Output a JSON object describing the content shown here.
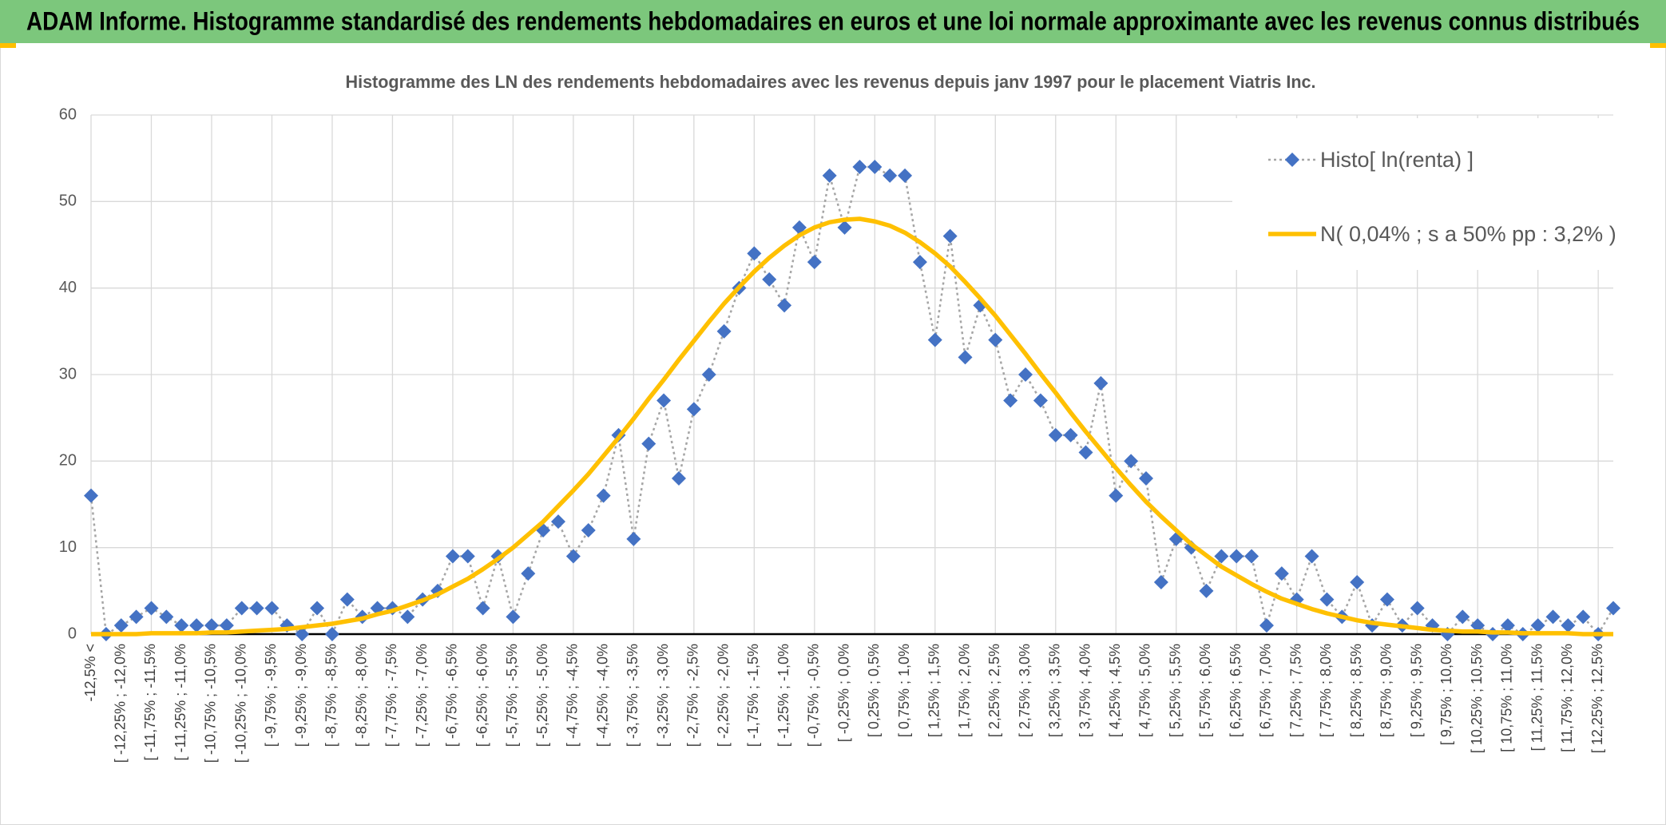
{
  "header": {
    "title": "ADAM Informe. Histogramme standardisé des rendements hebdomadaires en euros et une loi normale approximante avec les revenus connus distribués"
  },
  "chart_data": {
    "type": "line",
    "title": "Histogramme des LN des rendements hebdomadaires avec les revenus depuis janv 1997 pour le placement Viatris Inc.",
    "categories": [
      "-12,5% <",
      null,
      "[ -12,25% ; -12,0%",
      null,
      "[ -11,75% ; -11,5%",
      null,
      "[ -11,25% ; -11,0%",
      null,
      "[ -10,75% ; -10,5%",
      null,
      "[ -10,25% ; -10,0%",
      null,
      "[ -9,75% ; -9,5%",
      null,
      "[ -9,25% ; -9,0%",
      null,
      "[ -8,75% ; -8,5%",
      null,
      "[ -8,25% ; -8,0%",
      null,
      "[ -7,75% ; -7,5%",
      null,
      "[ -7,25% ; -7,0%",
      null,
      "[ -6,75% ; -6,5%",
      null,
      "[ -6,25% ; -6,0%",
      null,
      "[ -5,75% ; -5,5%",
      null,
      "[ -5,25% ; -5,0%",
      null,
      "[ -4,75% ; -4,5%",
      null,
      "[ -4,25% ; -4,0%",
      null,
      "[ -3,75% ; -3,5%",
      null,
      "[ -3,25% ; -3,0%",
      null,
      "[ -2,75% ; -2,5%",
      null,
      "[ -2,25% ; -2,0%",
      null,
      "[ -1,75% ; -1,5%",
      null,
      "[ -1,25% ; -1,0%",
      null,
      "[ -0,75% ; -0,5%",
      null,
      "[ -0,25% ; 0,0%",
      null,
      "[ 0,25% ; 0,5%",
      null,
      "[ 0,75% ; 1,0%",
      null,
      "[ 1,25% ; 1,5%",
      null,
      "[ 1,75% ; 2,0%",
      null,
      "[ 2,25% ; 2,5%",
      null,
      "[ 2,75% ; 3,0%",
      null,
      "[ 3,25% ; 3,5%",
      null,
      "[ 3,75% ; 4,0%",
      null,
      "[ 4,25% ; 4,5%",
      null,
      "[ 4,75% ; 5,0%",
      null,
      "[ 5,25% ; 5,5%",
      null,
      "[ 5,75% ; 6,0%",
      null,
      "[ 6,25% ; 6,5%",
      null,
      "[ 6,75% ; 7,0%",
      null,
      "[ 7,25% ; 7,5%",
      null,
      "[ 7,75% ; 8,0%",
      null,
      "[ 8,25% ; 8,5%",
      null,
      "[ 8,75% ; 9,0%",
      null,
      "[ 9,25% ; 9,5%",
      null,
      "[ 9,75% ; 10,0%",
      null,
      "[ 10,25% ; 10,5%",
      null,
      "[ 10,75% ; 11,0%",
      null,
      "[ 11,25% ; 11,5%",
      null,
      "[ 11,75% ; 12,0%",
      null,
      "[ 12,25% ; 12,5%",
      null
    ],
    "series": [
      {
        "name": "Histo[ ln(renta) ]",
        "color": "#4472c4",
        "line_color": "#a5a5a5",
        "line_style": "dotted",
        "marker": "diamond",
        "values": [
          16,
          0,
          1,
          2,
          3,
          2,
          1,
          1,
          1,
          1,
          3,
          3,
          3,
          1,
          0,
          3,
          0,
          4,
          2,
          3,
          3,
          2,
          4,
          5,
          9,
          9,
          3,
          9,
          2,
          7,
          12,
          13,
          9,
          12,
          16,
          23,
          11,
          22,
          27,
          18,
          26,
          30,
          35,
          40,
          44,
          41,
          38,
          47,
          43,
          53,
          47,
          54,
          54,
          53,
          53,
          43,
          34,
          46,
          32,
          38,
          34,
          27,
          30,
          27,
          23,
          23,
          21,
          29,
          16,
          20,
          18,
          6,
          11,
          10,
          5,
          9,
          9,
          9,
          1,
          7,
          4,
          9,
          4,
          2,
          6,
          1,
          4,
          1,
          3,
          1,
          0,
          2,
          1,
          0,
          1,
          0,
          1,
          2,
          1,
          2,
          0,
          3
        ]
      },
      {
        "name": "N( 0,04% ; s a 50% pp : 3,2% )",
        "color": "#ffc000",
        "line_style": "solid",
        "marker": "none",
        "values": [
          0,
          0,
          0,
          0,
          0.1,
          0.1,
          0.1,
          0.1,
          0.2,
          0.2,
          0.3,
          0.4,
          0.5,
          0.6,
          0.8,
          1.0,
          1.2,
          1.5,
          1.8,
          2.3,
          2.7,
          3.3,
          3.9,
          4.6,
          5.5,
          6.4,
          7.5,
          8.7,
          10.0,
          11.5,
          13.0,
          14.8,
          16.6,
          18.5,
          20.6,
          22.7,
          24.9,
          27.2,
          29.4,
          31.7,
          33.9,
          36.1,
          38.2,
          40.1,
          41.9,
          43.5,
          44.9,
          46.1,
          47.0,
          47.6,
          47.9,
          48.0,
          47.7,
          47.2,
          46.4,
          45.3,
          44.0,
          42.5,
          40.7,
          38.8,
          36.8,
          34.6,
          32.4,
          30.1,
          27.9,
          25.6,
          23.4,
          21.3,
          19.2,
          17.2,
          15.3,
          13.6,
          12.0,
          10.4,
          9.1,
          7.8,
          6.8,
          5.8,
          4.9,
          4.1,
          3.5,
          2.9,
          2.4,
          2.0,
          1.6,
          1.3,
          1.1,
          0.9,
          0.7,
          0.5,
          0.4,
          0.3,
          0.3,
          0.2,
          0.2,
          0.1,
          0.1,
          0.1,
          0.1,
          0,
          0,
          0
        ]
      }
    ],
    "ylim": [
      0,
      60
    ],
    "yticks": [
      0,
      10,
      20,
      30,
      40,
      50,
      60
    ],
    "grid": true,
    "legend": "upper right"
  }
}
